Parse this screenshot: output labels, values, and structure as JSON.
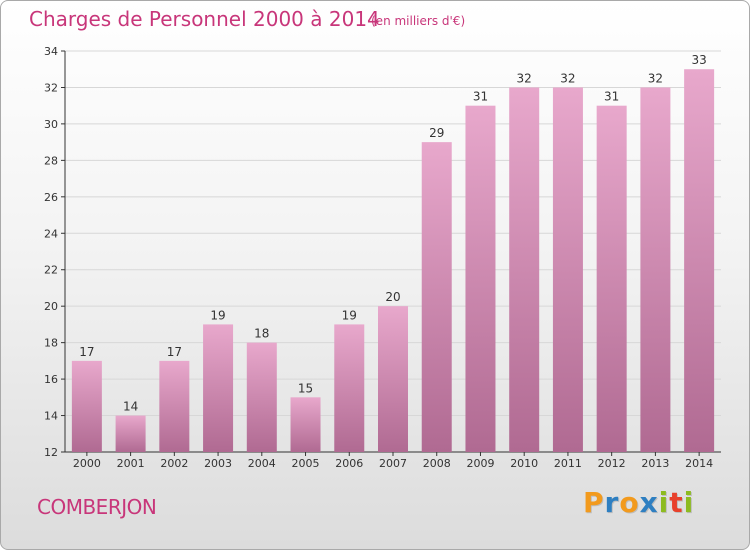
{
  "header": {
    "title": "Charges de Personnel 2000 à 2014",
    "subtitle": "(en milliers d'€)"
  },
  "footer": {
    "commune": "COMBERJON",
    "logo_text": "Proxiti",
    "logo_colors": [
      "#f29a1d",
      "#2e7fc1",
      "#f29a1d",
      "#2e7fc1",
      "#8dbb1f",
      "#e8412c",
      "#8dbb1f"
    ]
  },
  "colors": {
    "title": "#c8367a",
    "bar_top": "#e8a8cc",
    "bar_bottom": "#b06a92",
    "grid": "#d7d7d7",
    "axis": "#333333"
  },
  "chart_data": {
    "type": "bar",
    "categories": [
      "2000",
      "2001",
      "2002",
      "2003",
      "2004",
      "2005",
      "2006",
      "2007",
      "2008",
      "2009",
      "2010",
      "2011",
      "2012",
      "2013",
      "2014"
    ],
    "values": [
      17,
      14,
      17,
      19,
      18,
      15,
      19,
      20,
      29,
      31,
      32,
      32,
      31,
      32,
      33
    ],
    "ylim": [
      12,
      34
    ],
    "yticks": [
      12,
      14,
      16,
      18,
      20,
      22,
      24,
      26,
      28,
      30,
      32,
      34
    ],
    "grid": true,
    "data_labels": true
  }
}
